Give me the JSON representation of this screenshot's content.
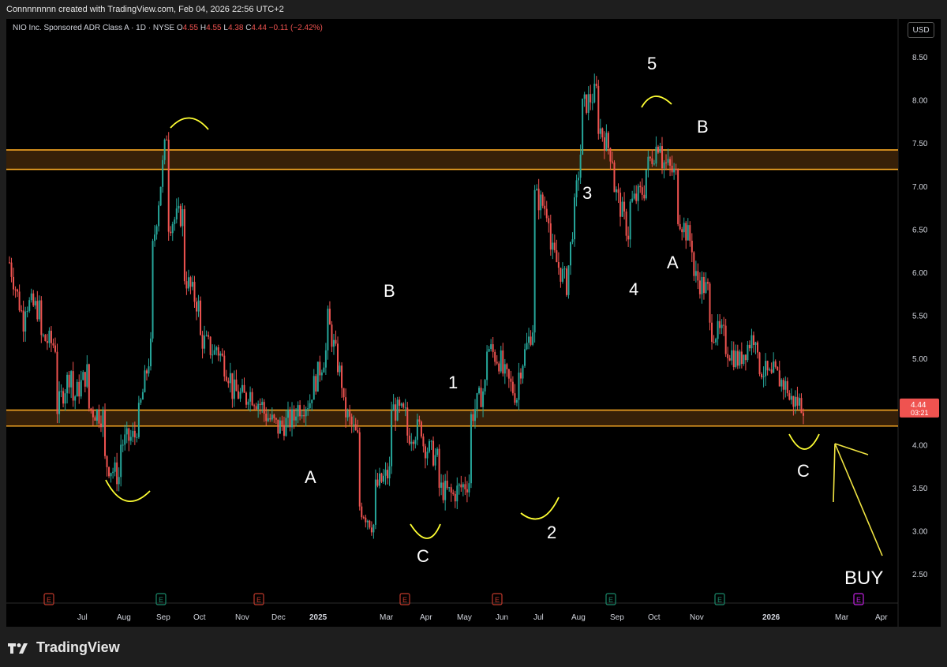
{
  "header": {
    "attribution": "Connnnnnnn created with TradingView.com, Feb 04, 2026 22:56 UTC+2"
  },
  "symbol": {
    "title": "NIO Inc. Sponsored ADR Class A · 1D · NYSE",
    "o_label": "O",
    "o": "4.55",
    "h_label": "H",
    "h": "4.55",
    "l_label": "L",
    "l": "4.38",
    "c_label": "C",
    "c": "4.44",
    "change": "−0.11 (−2.42%)"
  },
  "currency_button": "USD",
  "price_badge": {
    "price": "4.44",
    "countdown": "03:21"
  },
  "brand": {
    "name": "TradingView"
  },
  "colors": {
    "up": "#26a69a",
    "down": "#ef5350",
    "zone_line": "#f5a623",
    "zone_fill": "#3a2208",
    "annotation": "#ffff33",
    "arrow": "#f0e442",
    "earnings_red": "#c0392b",
    "earnings_green": "#1b8a6b",
    "earnings_future": "#c020e0",
    "badge": "#ef5350"
  },
  "chart_data": {
    "type": "candlestick",
    "yaxis": {
      "ticks": [
        "8.50",
        "8.00",
        "7.50",
        "7.00",
        "6.50",
        "6.00",
        "5.50",
        "5.00",
        "4.50",
        "4.00",
        "3.50",
        "3.00",
        "2.50"
      ],
      "ylim": [
        2.2,
        8.8
      ]
    },
    "xaxis": {
      "ticks": [
        "Jul",
        "Aug",
        "Sep",
        "Oct",
        "Nov",
        "Dec",
        "2025",
        "Mar",
        "Apr",
        "May",
        "Jun",
        "Jul",
        "Aug",
        "Sep",
        "Oct",
        "Nov",
        "2026",
        "Mar",
        "Apr"
      ],
      "bold": [
        "2025",
        "2026"
      ]
    },
    "zones": [
      {
        "low": 7.1,
        "high": 7.32
      },
      {
        "low": 4.2,
        "high": 4.38
      }
    ],
    "price_path": [
      [
        6.05,
        5.3
      ],
      [
        5.6,
        5.5
      ],
      [
        5.2,
        5.1
      ],
      [
        4.4,
        4.9
      ],
      [
        4.5,
        4.85
      ],
      [
        4.4,
        4.3
      ],
      [
        3.8,
        3.6
      ],
      [
        4.0,
        4.1
      ],
      [
        4.2,
        5.2
      ],
      [
        6.2,
        7.7
      ],
      [
        6.5,
        6.6
      ],
      [
        5.9,
        5.5
      ],
      [
        5.2,
        5.0
      ],
      [
        5.1,
        4.7
      ],
      [
        4.6,
        4.5
      ],
      [
        4.6,
        4.4
      ],
      [
        4.35,
        4.15
      ],
      [
        4.2,
        4.3
      ],
      [
        4.4,
        4.5
      ],
      [
        4.6,
        5.1
      ],
      [
        5.4,
        4.6
      ],
      [
        4.4,
        4.0
      ],
      [
        3.3,
        3.05
      ],
      [
        3.5,
        3.7
      ],
      [
        4.4,
        4.3
      ],
      [
        4.1,
        4.2
      ],
      [
        4.0,
        3.8
      ],
      [
        3.5,
        3.4
      ],
      [
        3.45,
        3.6
      ],
      [
        4.3,
        4.7
      ],
      [
        5.1,
        4.9
      ],
      [
        4.8,
        4.5
      ],
      [
        4.8,
        5.4
      ],
      [
        6.8,
        6.6
      ],
      [
        6.2,
        5.8
      ],
      [
        5.8,
        7.5
      ],
      [
        7.8,
        8.0
      ],
      [
        7.6,
        7.2
      ],
      [
        6.9,
        6.3
      ],
      [
        6.7,
        6.9
      ],
      [
        7.1,
        7.5
      ],
      [
        7.2,
        7.0
      ],
      [
        6.6,
        6.2
      ],
      [
        5.9,
        5.7
      ],
      [
        5.3,
        5.2
      ],
      [
        5.1,
        4.9
      ],
      [
        5.0,
        5.3
      ],
      [
        4.9,
        4.7
      ],
      [
        4.8,
        4.6
      ],
      [
        4.5,
        4.44
      ]
    ],
    "wave_labels": [
      "A",
      "B",
      "C",
      "1",
      "2",
      "3",
      "4",
      "5",
      "A",
      "B",
      "C",
      "BUY"
    ],
    "earnings": [
      {
        "label": "E",
        "color": "red"
      },
      {
        "label": "E",
        "color": "green"
      },
      {
        "label": "E",
        "color": "red"
      },
      {
        "label": "E",
        "color": "red"
      },
      {
        "label": "E",
        "color": "red"
      },
      {
        "label": "E",
        "color": "green"
      },
      {
        "label": "E",
        "color": "green"
      },
      {
        "label": "E",
        "color": "future"
      }
    ]
  }
}
